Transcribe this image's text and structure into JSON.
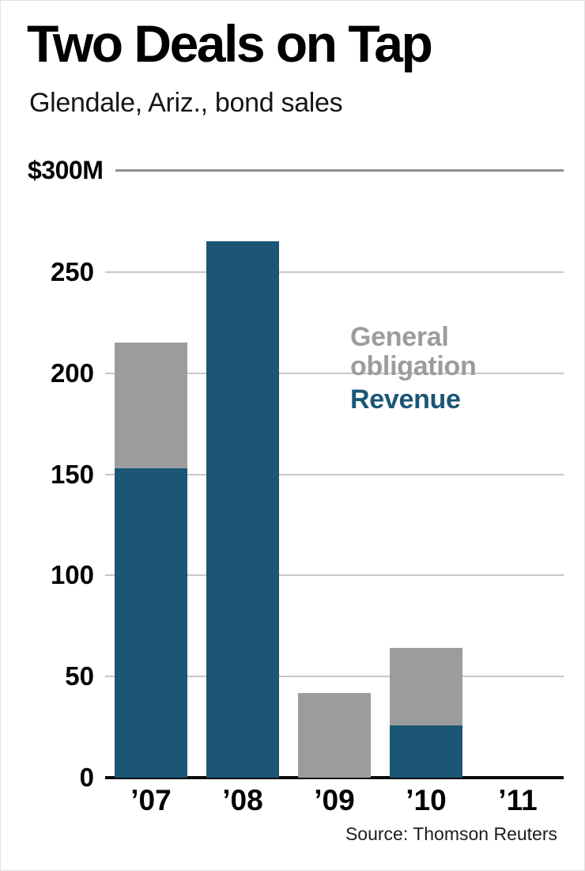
{
  "header": {
    "title": "Two Deals on Tap",
    "subtitle": "Glendale, Ariz., bond sales"
  },
  "chart": {
    "top_label": "$300M"
  },
  "legend": {
    "general_obligation": "General obligation",
    "revenue": "Revenue"
  },
  "footer": {
    "source": "Source: Thomson Reuters"
  },
  "chart_data": {
    "type": "bar",
    "stacked": true,
    "title": "Two Deals on Tap",
    "subtitle": "Glendale, Ariz., bond sales",
    "unit": "$M",
    "categories": [
      "’07",
      "’08",
      "’09",
      "’10",
      "’11"
    ],
    "series": [
      {
        "name": "Revenue",
        "color": "#1b5676",
        "values": [
          153,
          265,
          0,
          26,
          0
        ]
      },
      {
        "name": "General obligation",
        "color": "#9c9c9f",
        "values": [
          62,
          0,
          42,
          38,
          0
        ]
      }
    ],
    "stack_totals": [
      215,
      265,
      42,
      64,
      0
    ],
    "ylim": [
      0,
      300
    ],
    "yticks": [
      0,
      50,
      100,
      150,
      200,
      250
    ],
    "y_top_label": "$300M",
    "grid": true,
    "legend_position": "inside-right",
    "source": "Source: Thomson Reuters"
  }
}
